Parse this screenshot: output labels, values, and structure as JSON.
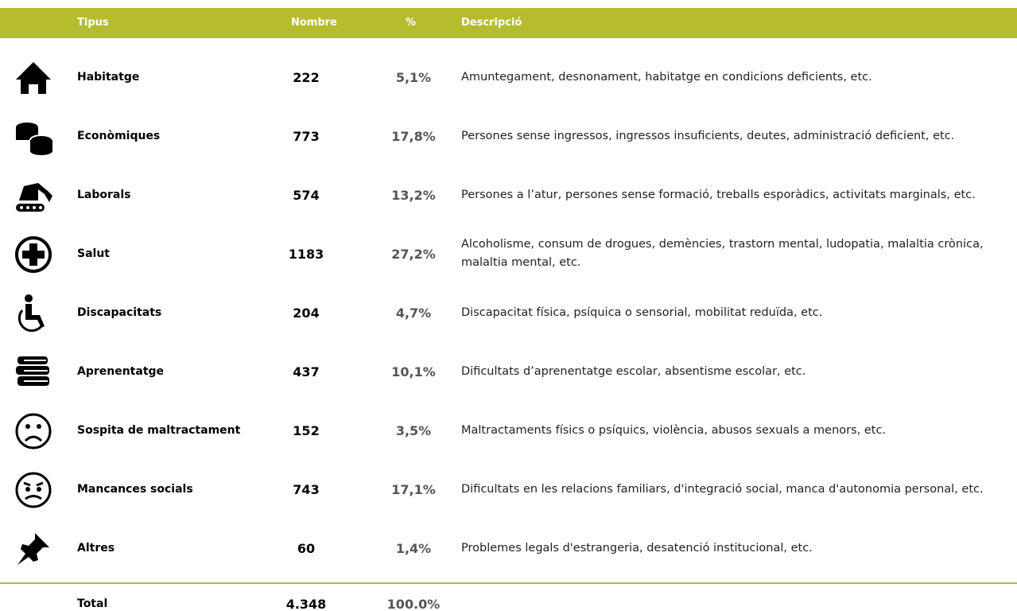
{
  "table": {
    "header": [
      "Tipus",
      "Nombre",
      "%",
      "Descripció"
    ],
    "rows": [
      [
        "Habitatge",
        "222",
        "5,1%",
        "Amuntegament, desnonament, habitatge en condicions deficients, etc."
      ],
      [
        "Econòmiques",
        "773",
        "17,8%",
        "Persones sense ingressos, ingressos insuficients, deutes, administració deficient, etc."
      ],
      [
        "Laborals",
        "574",
        "13,2%",
        "Persones a l’atur, persones sense formació, treballs esporàdics, activitats marginals, etc."
      ],
      [
        "Salut",
        "1183",
        "27,2%",
        "Alcoholisme, consum de drogues, demències, trastorn mental, ludopatia, malaltia crònica, malaltia mental, etc."
      ],
      [
        "Discapacitats",
        "204",
        "4,7%",
        "Discapacitat física, psíquica o sensorial, mobilitat reduïda, etc."
      ],
      [
        "Aprenentatge",
        "437",
        "10,1%",
        "Dificultats d’aprenentatge escolar, absentisme escolar, etc."
      ],
      [
        "Sospita de maltractament",
        "152",
        "3,5%",
        "Maltractaments físics o psíquics, violència, abusos sexuals a menors, etc."
      ],
      [
        "Mancances socials",
        "743",
        "17,1%",
        "Dificultats en les relacions familiars, d'integració social, manca d'autonomia personal, etc."
      ],
      [
        "Altres",
        "60",
        "1,4%",
        "Problemes legals d'estrangeria, desatenció institucional, etc."
      ]
    ],
    "total": [
      "Total",
      "4.348",
      "100.0%"
    ]
  }
}
